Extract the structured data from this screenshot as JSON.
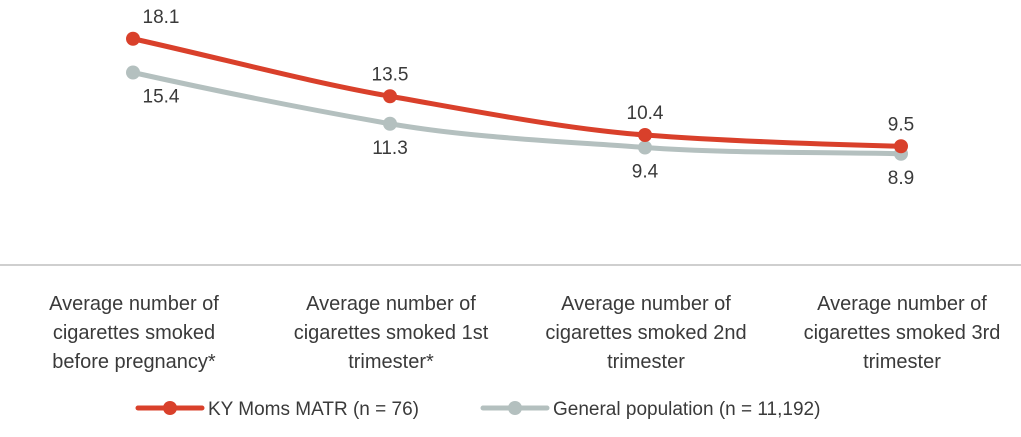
{
  "chart_data": {
    "type": "line",
    "title": "",
    "xlabel": "",
    "ylabel": "",
    "ylim": [
      0,
      20
    ],
    "grid": false,
    "legend_position": "bottom",
    "categories": [
      [
        "Average number of",
        "cigarettes smoked",
        "before pregnancy*"
      ],
      [
        "Average number of",
        "cigarettes smoked 1st",
        "trimester*"
      ],
      [
        "Average number of",
        "cigarettes smoked 2nd",
        "trimester"
      ],
      [
        "Average number of",
        "cigarettes smoked 3rd",
        "trimester"
      ]
    ],
    "series": [
      {
        "name": "KY Moms MATR (n = 76)",
        "color": "#d9402b",
        "values": [
          18.1,
          13.5,
          10.4,
          9.5
        ],
        "labels": [
          "18.1",
          "13.5",
          "10.4",
          "9.5"
        ]
      },
      {
        "name": "General population (n = 11,192)",
        "color": "#b4c0bf",
        "values": [
          15.4,
          11.3,
          9.4,
          8.9
        ],
        "labels": [
          "15.4",
          "11.3",
          "9.4",
          "8.9"
        ]
      }
    ]
  }
}
